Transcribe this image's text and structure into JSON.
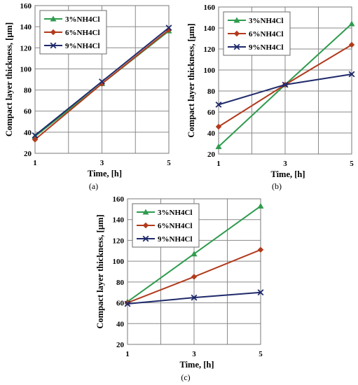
{
  "chart_data": [
    {
      "type": "line",
      "panel_label": "(a)",
      "xlabel": "Time, [h]",
      "ylabel": "Compact layer thickness, [µm]",
      "x": [
        1,
        3,
        5
      ],
      "xticks": [
        "1",
        "3",
        "5"
      ],
      "ylim": [
        20,
        160
      ],
      "yticks": [
        "20",
        "40",
        "60",
        "80",
        "100",
        "120",
        "140",
        "160"
      ],
      "grid": true,
      "legend_position": "top-left",
      "series": [
        {
          "name": "3%NH4Cl",
          "values": [
            36,
            86,
            136
          ],
          "color": "#2e9b4e",
          "marker": "triangle"
        },
        {
          "name": "6%NH4Cl",
          "values": [
            33,
            86,
            137
          ],
          "color": "#b23a1c",
          "marker": "diamond"
        },
        {
          "name": "9%NH4Cl",
          "values": [
            37,
            88,
            139
          ],
          "color": "#1f2a6b",
          "marker": "x"
        }
      ]
    },
    {
      "type": "line",
      "panel_label": "(b)",
      "xlabel": "Time, [h]",
      "ylabel": "Compact layer thickness, [µm]",
      "x": [
        1,
        3,
        5
      ],
      "xticks": [
        "1",
        "3",
        "5"
      ],
      "ylim": [
        20,
        160
      ],
      "yticks": [
        "20",
        "40",
        "60",
        "80",
        "100",
        "120",
        "140",
        "160"
      ],
      "grid": true,
      "legend_position": "top-left",
      "series": [
        {
          "name": "3%NH4Cl",
          "values": [
            27,
            86,
            144
          ],
          "color": "#2e9b4e",
          "marker": "triangle"
        },
        {
          "name": "6%NH4Cl",
          "values": [
            46,
            86,
            124
          ],
          "color": "#b23a1c",
          "marker": "diamond"
        },
        {
          "name": "9%NH4Cl",
          "values": [
            67,
            86,
            96
          ],
          "color": "#1f2a6b",
          "marker": "x"
        }
      ]
    },
    {
      "type": "line",
      "panel_label": "(c)",
      "xlabel": "Time, [h]",
      "ylabel": "Compact layer thickness, [µm]",
      "x": [
        1,
        3,
        5
      ],
      "xticks": [
        "1",
        "3",
        "5"
      ],
      "ylim": [
        20,
        160
      ],
      "yticks": [
        "20",
        "40",
        "60",
        "80",
        "100",
        "120",
        "140",
        "160"
      ],
      "grid": true,
      "legend_position": "top-left",
      "series": [
        {
          "name": "3%NH4Cl",
          "values": [
            61,
            107,
            153
          ],
          "color": "#2e9b4e",
          "marker": "triangle"
        },
        {
          "name": "6%NH4Cl",
          "values": [
            60,
            85,
            111
          ],
          "color": "#b23a1c",
          "marker": "diamond"
        },
        {
          "name": "9%NH4Cl",
          "values": [
            59,
            65,
            70
          ],
          "color": "#1f2a6b",
          "marker": "x"
        }
      ]
    }
  ]
}
